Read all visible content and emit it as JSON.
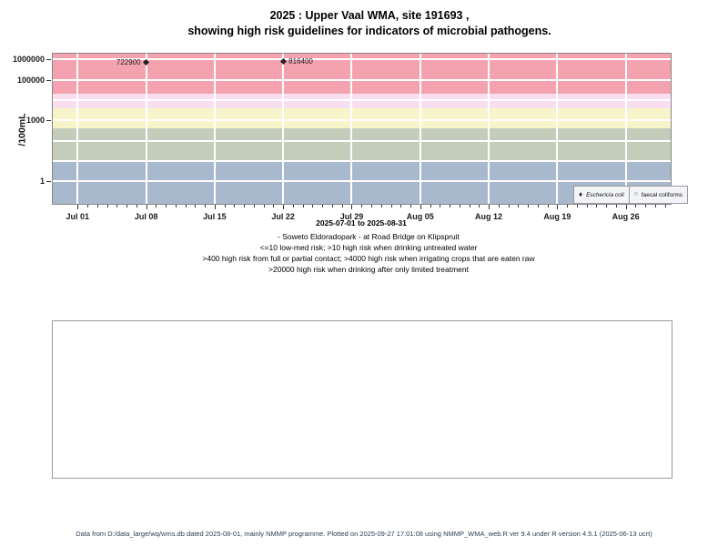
{
  "title": {
    "line1": "2025 : Upper Vaal WMA, site 191693 ,",
    "line2": "showing high risk guidelines for indicators of microbial pathogens."
  },
  "chart_data": {
    "type": "scatter",
    "title": "2025 : Upper Vaal WMA, site 191693 , showing high risk guidelines for indicators of microbial pathogens.",
    "ylabel": "/100mL",
    "xlabel": "2025-07-01 to 2025-08-31",
    "y_scale": "log10",
    "x_range_days": 62,
    "grid": true,
    "x_axis": {
      "tick_labels": [
        "Jul 01",
        "Jul 08",
        "Jul 15",
        "Jul 22",
        "Jul 29",
        "Aug 05",
        "Aug 12",
        "Aug 19",
        "Aug 26"
      ],
      "tick_days": [
        0,
        7,
        14,
        21,
        28,
        35,
        42,
        49,
        56
      ],
      "minor_tick_interval_days": 1
    },
    "y_axis": {
      "tick_labels": [
        "1000000",
        "100000",
        "1000",
        "1"
      ],
      "tick_values": [
        1000000,
        100000,
        1000,
        1
      ],
      "gridline_values": [
        1,
        10,
        100,
        1000,
        10000,
        100000,
        1000000
      ]
    },
    "series": [
      {
        "name": "Eschericia coli",
        "marker": "filled-diamond",
        "points": [
          {
            "day": 7,
            "date": "Jul 08",
            "value": 722900,
            "label": "722900",
            "label_side": "left"
          },
          {
            "day": 21,
            "date": "Jul 22",
            "value": 816400,
            "label": "816400",
            "label_side": "right"
          }
        ]
      },
      {
        "name": "faecal coliforms",
        "marker": "open-circle",
        "points": []
      }
    ],
    "risk_bands": [
      {
        "range_from": null,
        "range_to": 10,
        "color": "#a9b9cd",
        "meaning": "<=10 low-med risk"
      },
      {
        "range_from": 10,
        "range_to": 400,
        "color": "#c4cdbb",
        "meaning": ">10 high risk when drinking untreated water"
      },
      {
        "range_from": 400,
        "range_to": 4000,
        "color": "#f8f4c9",
        "meaning": ">400 high risk from full or partial contact"
      },
      {
        "range_from": 4000,
        "range_to": 20000,
        "color": "#f9def0",
        "meaning": ">4000 high risk when irrigating crops that are eaten raw"
      },
      {
        "range_from": 20000,
        "range_to": null,
        "color": "#f5a2b0",
        "meaning": ">20000 high risk when drinking after only limited treatment"
      }
    ],
    "legend": {
      "position": "bottom-right",
      "entries": [
        {
          "glyph": "♦",
          "label": "Eschericia coli",
          "italic": true
        },
        {
          "glyph": "○",
          "label": "faecal coliforms",
          "italic": false
        }
      ]
    }
  },
  "captions": {
    "site": "- Soweto Eldoradopark - at Road Bridge on Klipspruit",
    "risk1": "<=10 low-med risk; >10 high risk when drinking untreated water",
    "risk2": ">400 high risk from full or partial contact; >4000 high risk when irrigating crops that are eaten raw",
    "risk3": ">20000 high risk when drinking after only limited treatment"
  },
  "footer": "Data from D:/data_large/wq/wms.db dated 2025-08-01, mainly NMMP programme. Plotted on 2025-09-27 17:01:08 using NMMP_WMA_web.R ver 9.4 under R version 4.5.1 (2025-06-13 ucrt)"
}
